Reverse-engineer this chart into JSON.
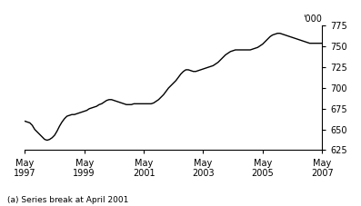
{
  "title": "",
  "ylabel_right": "'000",
  "footnote": "(a) Series break at April 2001",
  "ylim": [
    625,
    775
  ],
  "yticks": [
    625,
    650,
    675,
    700,
    725,
    750,
    775
  ],
  "x_tick_labels": [
    [
      "May\n1997",
      "May\n1999",
      "May\n2001",
      "May\n2003",
      "May\n2005",
      "May\n2007"
    ]
  ],
  "x_tick_positions": [
    0,
    24,
    48,
    72,
    96,
    120
  ],
  "line_color": "#000000",
  "line_width": 1.0,
  "background_color": "#ffffff",
  "data_x": [
    0,
    1,
    2,
    3,
    4,
    5,
    6,
    7,
    8,
    9,
    10,
    11,
    12,
    13,
    14,
    15,
    16,
    17,
    18,
    19,
    20,
    21,
    22,
    23,
    24,
    25,
    26,
    27,
    28,
    29,
    30,
    31,
    32,
    33,
    34,
    35,
    36,
    37,
    38,
    39,
    40,
    41,
    42,
    43,
    44,
    45,
    46,
    47,
    48,
    49,
    50,
    51,
    52,
    53,
    54,
    55,
    56,
    57,
    58,
    59,
    60,
    61,
    62,
    63,
    64,
    65,
    66,
    67,
    68,
    69,
    70,
    71,
    72,
    73,
    74,
    75,
    76,
    77,
    78,
    79,
    80,
    81,
    82,
    83,
    84,
    85,
    86,
    87,
    88,
    89,
    90,
    91,
    92,
    93,
    94,
    95,
    96,
    97,
    98,
    99,
    100,
    101,
    102,
    103,
    104,
    105,
    106,
    107,
    108,
    109,
    110,
    111,
    112,
    113,
    114,
    115,
    116,
    117,
    118,
    119,
    120
  ],
  "data_y": [
    660,
    659,
    658,
    655,
    650,
    647,
    644,
    641,
    638,
    637,
    638,
    640,
    643,
    648,
    654,
    659,
    663,
    666,
    667,
    668,
    668,
    669,
    670,
    671,
    672,
    673,
    675,
    676,
    677,
    678,
    680,
    681,
    683,
    685,
    686,
    686,
    685,
    684,
    683,
    682,
    681,
    680,
    680,
    680,
    681,
    681,
    681,
    681,
    681,
    681,
    681,
    681,
    682,
    684,
    686,
    689,
    692,
    696,
    700,
    703,
    706,
    709,
    713,
    717,
    720,
    722,
    722,
    721,
    720,
    720,
    721,
    722,
    723,
    724,
    725,
    726,
    727,
    729,
    731,
    734,
    737,
    740,
    742,
    744,
    745,
    746,
    746,
    746,
    746,
    746,
    746,
    746,
    747,
    748,
    749,
    751,
    753,
    756,
    759,
    762,
    764,
    765,
    766,
    766,
    765,
    764,
    763,
    762,
    761,
    760,
    759,
    758,
    757,
    756,
    755,
    754,
    754,
    754,
    754,
    754,
    754
  ]
}
